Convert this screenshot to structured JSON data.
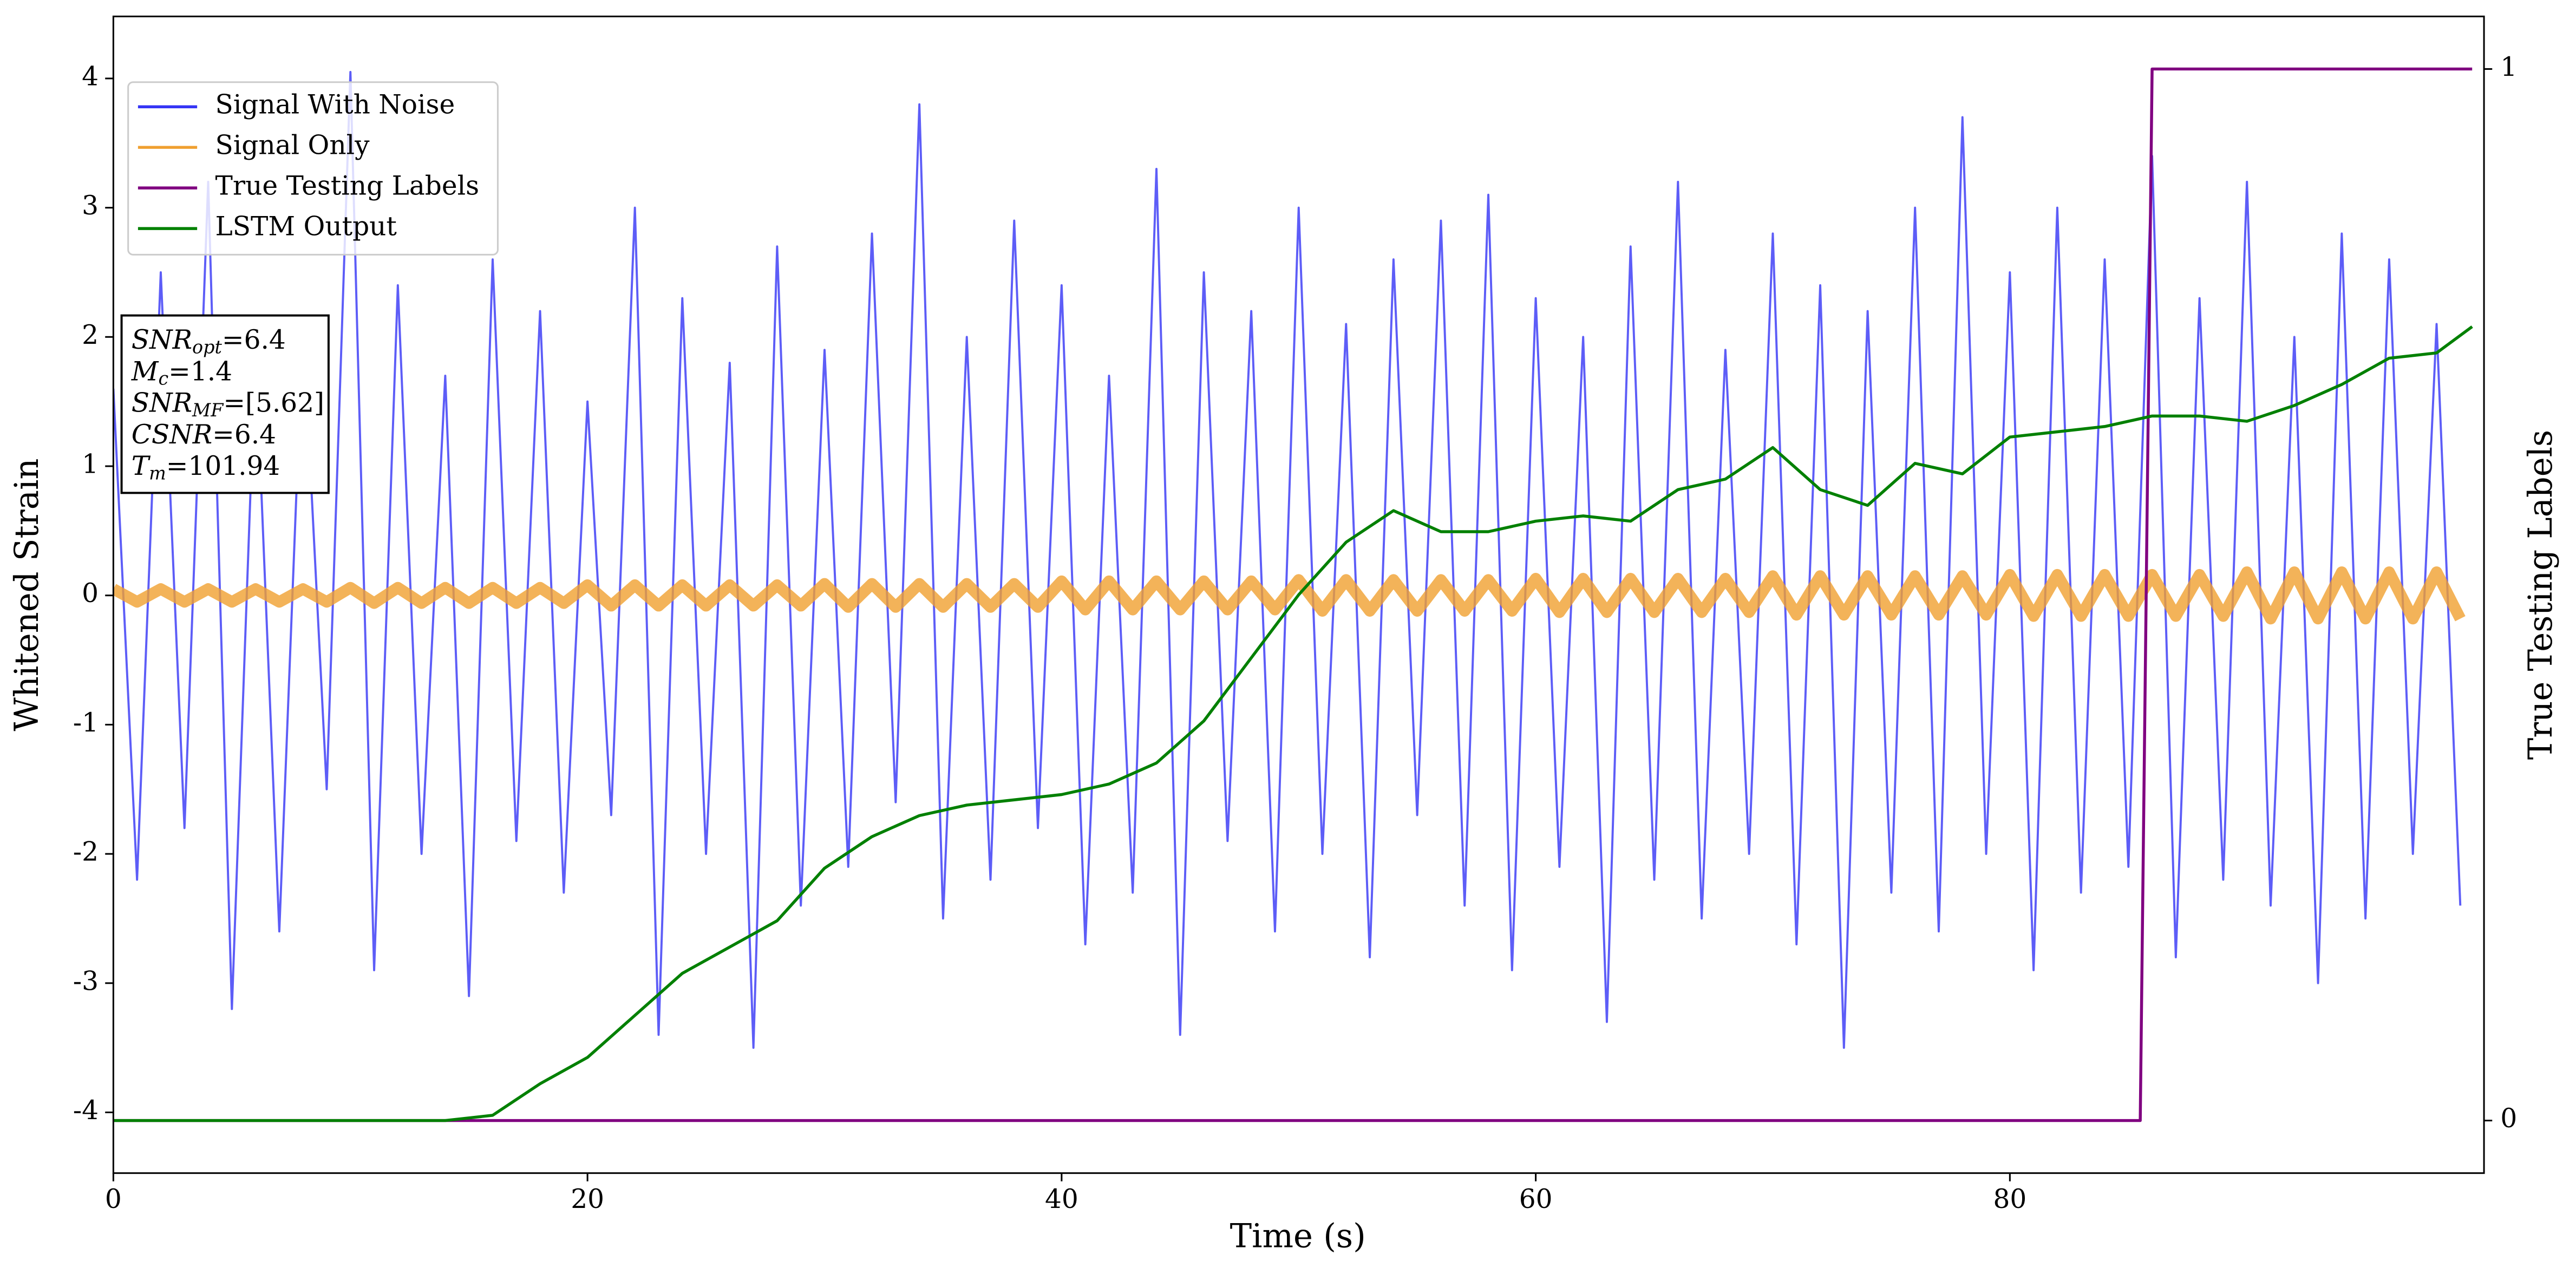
{
  "chart_data": {
    "type": "line",
    "xlabel": "Time (s)",
    "ylabel": "Whitened Strain",
    "y2label": "True Testing Labels",
    "xlim": [
      0,
      100
    ],
    "xticks": [
      0,
      20,
      40,
      60,
      80
    ],
    "ylim": [
      -4.47,
      4.48
    ],
    "yticks": [
      -4,
      -3,
      -2,
      -1,
      0,
      1,
      2,
      3,
      4
    ],
    "y2lim": [
      -0.05,
      1.05
    ],
    "y2ticks": [
      0,
      1
    ],
    "legend": "upper left",
    "series": [
      {
        "name": "Signal With Noise",
        "color": "#3535f5",
        "x": [
          0,
          1,
          2,
          3,
          4,
          5,
          6,
          7,
          8,
          9,
          10,
          11,
          12,
          13,
          14,
          15,
          16,
          17,
          18,
          19,
          20,
          21,
          22,
          23,
          24,
          25,
          26,
          27,
          28,
          29,
          30,
          31,
          32,
          33,
          34,
          35,
          36,
          37,
          38,
          39,
          40,
          41,
          42,
          43,
          44,
          45,
          46,
          47,
          48,
          49,
          50,
          51,
          52,
          53,
          54,
          55,
          56,
          57,
          58,
          59,
          60,
          61,
          62,
          63,
          64,
          65,
          66,
          67,
          68,
          69,
          70,
          71,
          72,
          73,
          74,
          75,
          76,
          77,
          78,
          79,
          80,
          81,
          82,
          83,
          84,
          85,
          86,
          87,
          88,
          89,
          90,
          91,
          92,
          93,
          94,
          95,
          96,
          97,
          98,
          99
        ],
        "values": [
          1.6,
          -2.2,
          2.5,
          -1.8,
          3.2,
          -3.2,
          1.9,
          -2.6,
          2.1,
          -1.5,
          4.05,
          -2.9,
          2.4,
          -2.0,
          1.7,
          -3.1,
          2.6,
          -1.9,
          2.2,
          -2.3,
          1.5,
          -1.7,
          3.0,
          -3.4,
          2.3,
          -2.0,
          1.8,
          -3.5,
          2.7,
          -2.4,
          1.9,
          -2.1,
          2.8,
          -1.6,
          3.8,
          -2.5,
          2.0,
          -2.2,
          2.9,
          -1.8,
          2.4,
          -2.7,
          1.7,
          -2.3,
          3.3,
          -3.4,
          2.5,
          -1.9,
          2.2,
          -2.6,
          3.0,
          -2.0,
          2.1,
          -2.8,
          2.6,
          -1.7,
          2.9,
          -2.4,
          3.1,
          -2.9,
          2.3,
          -2.1,
          2.0,
          -3.3,
          2.7,
          -2.2,
          3.2,
          -2.5,
          1.9,
          -2.0,
          2.8,
          -2.7,
          2.4,
          -3.5,
          2.2,
          -2.3,
          3.0,
          -2.6,
          3.7,
          -2.0,
          2.5,
          -2.9,
          3.0,
          -2.3,
          2.6,
          -2.1,
          3.4,
          -2.8,
          2.3,
          -2.2,
          3.2,
          -2.4,
          2.0,
          -3.0,
          2.8,
          -2.5,
          2.6,
          -2.0,
          2.1,
          -2.4
        ]
      },
      {
        "name": "Signal Only",
        "color": "#f0a030",
        "x": [
          0,
          1,
          2,
          3,
          4,
          5,
          6,
          7,
          8,
          9,
          10,
          11,
          12,
          13,
          14,
          15,
          16,
          17,
          18,
          19,
          20,
          21,
          22,
          23,
          24,
          25,
          26,
          27,
          28,
          29,
          30,
          31,
          32,
          33,
          34,
          35,
          36,
          37,
          38,
          39,
          40,
          41,
          42,
          43,
          44,
          45,
          46,
          47,
          48,
          49,
          50,
          51,
          52,
          53,
          54,
          55,
          56,
          57,
          58,
          59,
          60,
          61,
          62,
          63,
          64,
          65,
          66,
          67,
          68,
          69,
          70,
          71,
          72,
          73,
          74,
          75,
          76,
          77,
          78,
          79,
          80,
          81,
          82,
          83,
          84,
          85,
          86,
          87,
          88,
          89,
          90,
          91,
          92,
          93,
          94,
          95,
          96,
          97,
          98,
          99
        ],
        "values": [
          0.05,
          -0.05,
          0.05,
          -0.05,
          0.05,
          -0.05,
          0.05,
          -0.05,
          0.05,
          -0.05,
          0.06,
          -0.06,
          0.06,
          -0.06,
          0.06,
          -0.06,
          0.06,
          -0.06,
          0.06,
          -0.06,
          0.08,
          -0.08,
          0.08,
          -0.08,
          0.08,
          -0.08,
          0.08,
          -0.08,
          0.08,
          -0.08,
          0.09,
          -0.09,
          0.09,
          -0.09,
          0.09,
          -0.09,
          0.09,
          -0.09,
          0.09,
          -0.09,
          0.11,
          -0.11,
          0.11,
          -0.11,
          0.11,
          -0.11,
          0.11,
          -0.11,
          0.11,
          -0.11,
          0.12,
          -0.12,
          0.12,
          -0.12,
          0.12,
          -0.12,
          0.12,
          -0.12,
          0.12,
          -0.12,
          0.13,
          -0.13,
          0.13,
          -0.13,
          0.13,
          -0.13,
          0.13,
          -0.13,
          0.13,
          -0.13,
          0.15,
          -0.15,
          0.15,
          -0.15,
          0.15,
          -0.15,
          0.15,
          -0.15,
          0.15,
          -0.15,
          0.16,
          -0.16,
          0.16,
          -0.16,
          0.16,
          -0.16,
          0.16,
          -0.16,
          0.16,
          -0.16,
          0.18,
          -0.18,
          0.18,
          -0.18,
          0.18,
          -0.18,
          0.18,
          -0.18,
          0.18,
          -0.18
        ]
      },
      {
        "name": "True Testing Labels",
        "color": "#800080",
        "axis": "y2",
        "x": [
          0,
          85.5,
          86,
          99.5
        ],
        "values": [
          0,
          0,
          1,
          1
        ]
      },
      {
        "name": "LSTM Output",
        "color": "#008000",
        "axis": "y2",
        "x": [
          0,
          2,
          4,
          6,
          8,
          10,
          12,
          14,
          16,
          18,
          20,
          22,
          24,
          26,
          28,
          30,
          32,
          34,
          36,
          38,
          40,
          42,
          44,
          46,
          48,
          50,
          52,
          54,
          56,
          58,
          60,
          62,
          64,
          66,
          68,
          70,
          72,
          74,
          76,
          78,
          80,
          82,
          84,
          86,
          88,
          90,
          92,
          94,
          96,
          98,
          99.5
        ],
        "values": [
          0,
          0,
          0,
          0,
          0,
          0,
          0,
          0,
          0.005,
          0.035,
          0.06,
          0.1,
          0.14,
          0.165,
          0.19,
          0.24,
          0.27,
          0.29,
          0.3,
          0.305,
          0.31,
          0.32,
          0.34,
          0.38,
          0.44,
          0.5,
          0.55,
          0.58,
          0.56,
          0.56,
          0.57,
          0.575,
          0.57,
          0.6,
          0.61,
          0.64,
          0.6,
          0.585,
          0.625,
          0.615,
          0.65,
          0.655,
          0.66,
          0.67,
          0.67,
          0.665,
          0.68,
          0.7,
          0.725,
          0.73,
          0.755
        ]
      }
    ],
    "annotation": [
      {
        "base": "SNR",
        "sub": "opt",
        "text": "=6.4"
      },
      {
        "base": "M",
        "sub": "c",
        "text": "=1.4"
      },
      {
        "base": "SNR",
        "sub": "MF",
        "text": "=[5.62]"
      },
      {
        "base": "CSNR",
        "text": "=6.4"
      },
      {
        "base": "T",
        "sub": "m",
        "text": "=101.94"
      }
    ]
  }
}
